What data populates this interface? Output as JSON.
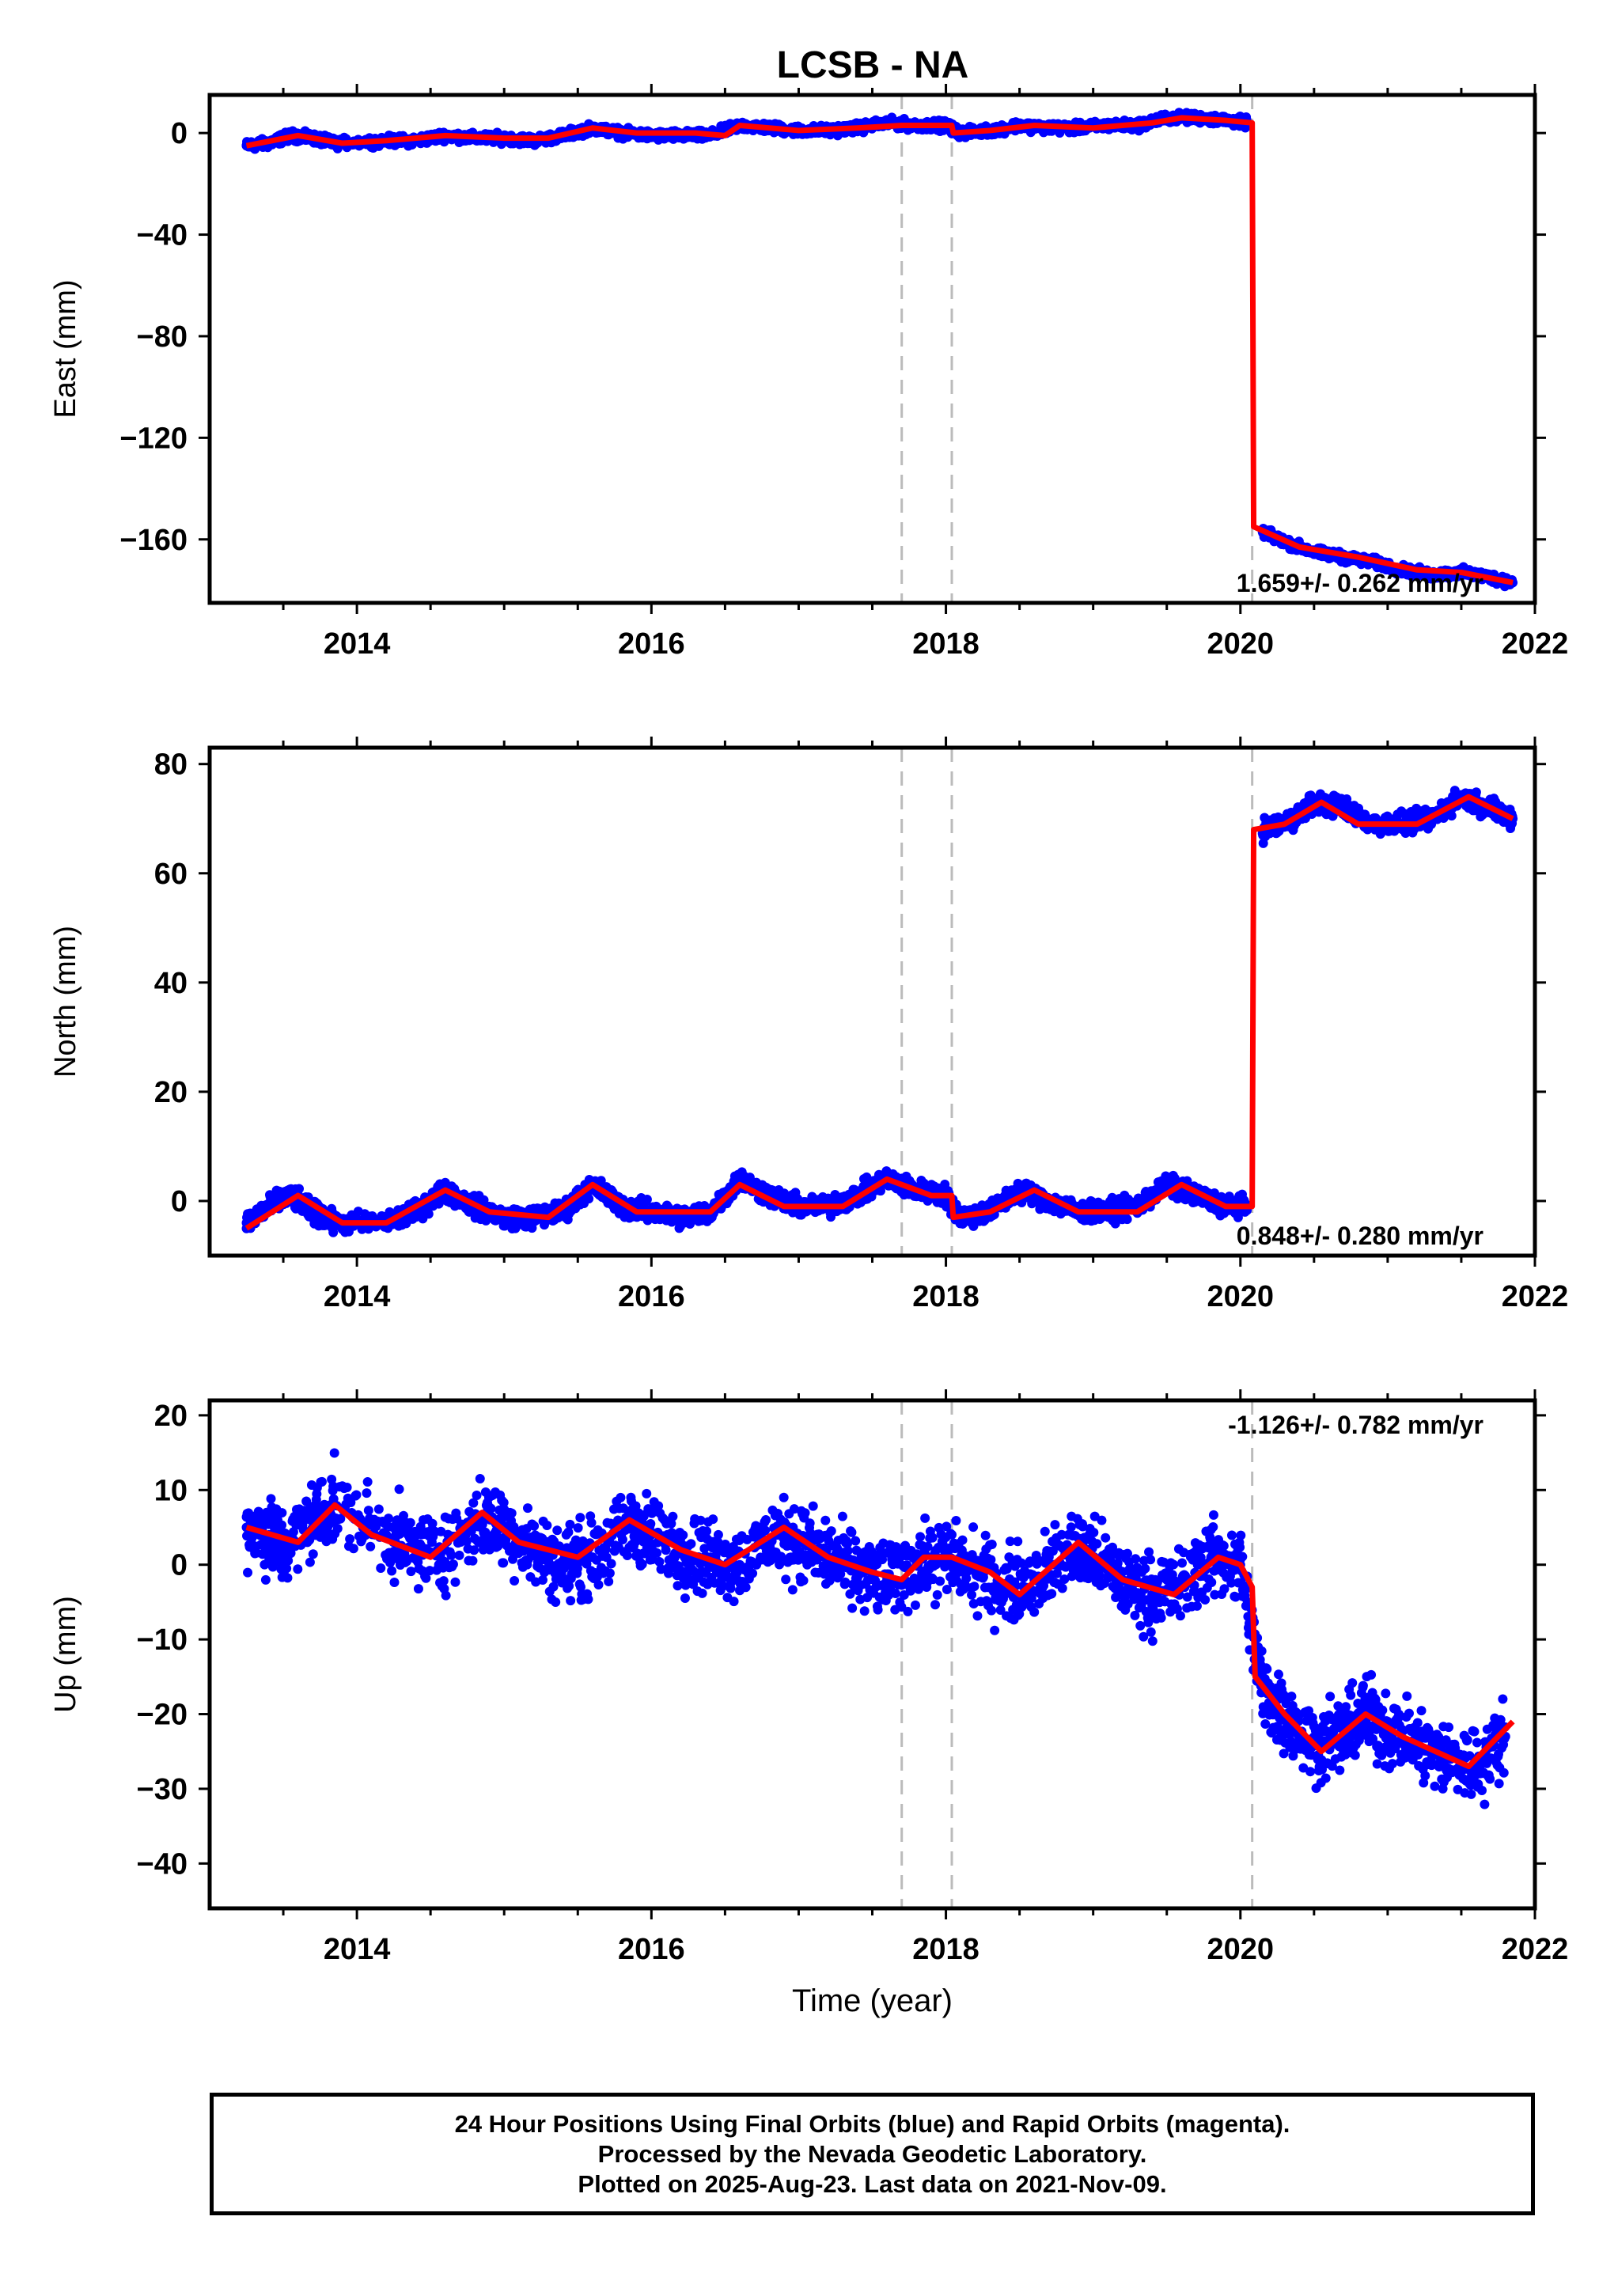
{
  "title": "LCSB - NA",
  "chart_data": [
    {
      "type": "scatter",
      "ylabel": "East (mm)",
      "xlim": [
        2013.0,
        2022.0
      ],
      "ylim": [
        -185,
        15
      ],
      "xticks": [
        2014,
        2016,
        2018,
        2020,
        2022
      ],
      "yticks": [
        0,
        -40,
        -80,
        -120,
        -160
      ],
      "rate_label": "1.659+/- 0.262 mm/yr",
      "rate_position": "bottom-right",
      "event_lines": [
        2017.7,
        2018.04,
        2020.08
      ],
      "series": [
        {
          "color": "#0000ff",
          "markers": "points",
          "values": [
            [
              2013.25,
              -5
            ],
            [
              2013.4,
              -4
            ],
            [
              2013.55,
              -1
            ],
            [
              2013.7,
              -2
            ],
            [
              2013.85,
              -4
            ],
            [
              2014.2,
              -3
            ],
            [
              2014.4,
              -3
            ],
            [
              2014.6,
              -1
            ],
            [
              2014.8,
              -2
            ],
            [
              2015.0,
              -2
            ],
            [
              2015.2,
              -3
            ],
            [
              2015.4,
              -1
            ],
            [
              2015.6,
              2
            ],
            [
              2015.8,
              0
            ],
            [
              2016.0,
              -1
            ],
            [
              2016.2,
              -1
            ],
            [
              2016.4,
              -1
            ],
            [
              2016.6,
              3
            ],
            [
              2016.8,
              2
            ],
            [
              2017.0,
              1
            ],
            [
              2017.2,
              1
            ],
            [
              2017.4,
              2
            ],
            [
              2017.6,
              4
            ],
            [
              2017.8,
              3
            ],
            [
              2018.0,
              3
            ],
            [
              2018.1,
              0
            ],
            [
              2018.3,
              1
            ],
            [
              2018.5,
              3
            ],
            [
              2018.7,
              2
            ],
            [
              2018.9,
              2
            ],
            [
              2019.1,
              3
            ],
            [
              2019.3,
              3
            ],
            [
              2019.5,
              6
            ],
            [
              2019.7,
              6
            ],
            [
              2019.9,
              5
            ],
            [
              2020.05,
              4
            ],
            [
              2020.15,
              -157
            ],
            [
              2020.3,
              -161
            ],
            [
              2020.5,
              -165
            ],
            [
              2020.7,
              -167
            ],
            [
              2020.9,
              -169
            ],
            [
              2021.1,
              -172
            ],
            [
              2021.3,
              -174
            ],
            [
              2021.5,
              -173
            ],
            [
              2021.7,
              -175
            ],
            [
              2021.85,
              -177
            ]
          ]
        },
        {
          "color": "#ff0000",
          "markers": "line",
          "values": [
            [
              2013.25,
              -5
            ],
            [
              2013.6,
              -1
            ],
            [
              2013.9,
              -4
            ],
            [
              2014.2,
              -3
            ],
            [
              2014.6,
              -1
            ],
            [
              2015.0,
              -2
            ],
            [
              2015.3,
              -2
            ],
            [
              2015.6,
              2
            ],
            [
              2015.9,
              0
            ],
            [
              2016.3,
              0
            ],
            [
              2016.5,
              -1
            ],
            [
              2016.6,
              3
            ],
            [
              2017.0,
              1
            ],
            [
              2017.4,
              2
            ],
            [
              2017.7,
              3
            ],
            [
              2018.04,
              3
            ],
            [
              2018.05,
              0
            ],
            [
              2018.3,
              1
            ],
            [
              2018.6,
              3
            ],
            [
              2019.0,
              2
            ],
            [
              2019.4,
              4
            ],
            [
              2019.6,
              6
            ],
            [
              2019.9,
              5
            ],
            [
              2020.08,
              4
            ],
            [
              2020.09,
              -155
            ],
            [
              2020.4,
              -163
            ],
            [
              2020.8,
              -167
            ],
            [
              2021.2,
              -172
            ],
            [
              2021.5,
              -173
            ],
            [
              2021.85,
              -177
            ]
          ]
        }
      ]
    },
    {
      "type": "scatter",
      "ylabel": "North (mm)",
      "xlim": [
        2013.0,
        2022.0
      ],
      "ylim": [
        -10,
        83
      ],
      "xticks": [
        2014,
        2016,
        2018,
        2020,
        2022
      ],
      "yticks": [
        0,
        20,
        40,
        60,
        80
      ],
      "rate_label": "0.848+/- 0.280 mm/yr",
      "rate_position": "bottom-right",
      "event_lines": [
        2017.7,
        2018.04,
        2020.08
      ],
      "series": [
        {
          "color": "#0000ff",
          "markers": "points",
          "values": [
            [
              2013.25,
              -4
            ],
            [
              2013.4,
              -1
            ],
            [
              2013.55,
              1
            ],
            [
              2013.7,
              -2
            ],
            [
              2013.85,
              -4
            ],
            [
              2014.2,
              -4
            ],
            [
              2014.4,
              -2
            ],
            [
              2014.6,
              2
            ],
            [
              2014.8,
              -1
            ],
            [
              2015.0,
              -3
            ],
            [
              2015.2,
              -3
            ],
            [
              2015.4,
              -2
            ],
            [
              2015.6,
              3
            ],
            [
              2015.8,
              -1
            ],
            [
              2016.0,
              -2
            ],
            [
              2016.2,
              -3
            ],
            [
              2016.4,
              -2
            ],
            [
              2016.6,
              4
            ],
            [
              2016.8,
              1
            ],
            [
              2017.0,
              -1
            ],
            [
              2017.2,
              -1
            ],
            [
              2017.4,
              1
            ],
            [
              2017.6,
              4
            ],
            [
              2017.8,
              2
            ],
            [
              2018.0,
              1
            ],
            [
              2018.1,
              -3
            ],
            [
              2018.3,
              -2
            ],
            [
              2018.5,
              2
            ],
            [
              2018.7,
              0
            ],
            [
              2018.9,
              -2
            ],
            [
              2019.1,
              -2
            ],
            [
              2019.3,
              -1
            ],
            [
              2019.5,
              3
            ],
            [
              2019.7,
              1
            ],
            [
              2019.9,
              -1
            ],
            [
              2020.05,
              -1
            ],
            [
              2020.15,
              68
            ],
            [
              2020.3,
              69
            ],
            [
              2020.5,
              73
            ],
            [
              2020.7,
              72
            ],
            [
              2020.9,
              69
            ],
            [
              2021.1,
              69
            ],
            [
              2021.3,
              70
            ],
            [
              2021.5,
              74
            ],
            [
              2021.7,
              72
            ],
            [
              2021.85,
              70
            ]
          ]
        },
        {
          "color": "#ff0000",
          "markers": "line",
          "values": [
            [
              2013.25,
              -5
            ],
            [
              2013.6,
              1
            ],
            [
              2013.9,
              -4
            ],
            [
              2014.2,
              -4
            ],
            [
              2014.6,
              2
            ],
            [
              2014.9,
              -2
            ],
            [
              2015.3,
              -3
            ],
            [
              2015.6,
              3
            ],
            [
              2015.9,
              -2
            ],
            [
              2016.4,
              -2
            ],
            [
              2016.6,
              3
            ],
            [
              2016.9,
              -1
            ],
            [
              2017.3,
              -1
            ],
            [
              2017.6,
              4
            ],
            [
              2017.9,
              1
            ],
            [
              2018.04,
              1
            ],
            [
              2018.05,
              -3
            ],
            [
              2018.3,
              -2
            ],
            [
              2018.6,
              2
            ],
            [
              2018.9,
              -2
            ],
            [
              2019.3,
              -2
            ],
            [
              2019.6,
              3
            ],
            [
              2019.9,
              -1
            ],
            [
              2020.08,
              -1
            ],
            [
              2020.09,
              68
            ],
            [
              2020.3,
              69
            ],
            [
              2020.55,
              73
            ],
            [
              2020.8,
              69
            ],
            [
              2021.2,
              69
            ],
            [
              2021.55,
              74
            ],
            [
              2021.85,
              70
            ]
          ]
        }
      ]
    },
    {
      "type": "scatter",
      "ylabel": "Up (mm)",
      "xlabel": "Time (year)",
      "xlim": [
        2013.0,
        2022.0
      ],
      "ylim": [
        -46,
        22
      ],
      "xticks": [
        2014,
        2016,
        2018,
        2020,
        2022
      ],
      "yticks": [
        20,
        10,
        0,
        -10,
        -20,
        -30,
        -40
      ],
      "rate_label": "-1.126+/- 0.782 mm/yr",
      "rate_position": "top-right",
      "event_lines": [
        2017.7,
        2018.04,
        2020.08
      ],
      "series": [
        {
          "color": "#0000ff",
          "markers": "points",
          "values": [
            [
              2013.25,
              5
            ],
            [
              2013.4,
              4
            ],
            [
              2013.5,
              2
            ],
            [
              2013.7,
              6
            ],
            [
              2013.85,
              8
            ],
            [
              2014.2,
              4
            ],
            [
              2014.4,
              2
            ],
            [
              2014.6,
              2
            ],
            [
              2014.85,
              6
            ],
            [
              2015.0,
              5
            ],
            [
              2015.2,
              2
            ],
            [
              2015.4,
              0
            ],
            [
              2015.6,
              1
            ],
            [
              2015.85,
              5
            ],
            [
              2016.0,
              4
            ],
            [
              2016.2,
              2
            ],
            [
              2016.4,
              1
            ],
            [
              2016.6,
              0
            ],
            [
              2016.85,
              4
            ],
            [
              2017.0,
              3
            ],
            [
              2017.2,
              1
            ],
            [
              2017.4,
              -1
            ],
            [
              2017.6,
              -2
            ],
            [
              2017.8,
              0
            ],
            [
              2018.0,
              1
            ],
            [
              2018.2,
              -1
            ],
            [
              2018.4,
              -3
            ],
            [
              2018.6,
              -2
            ],
            [
              2018.85,
              2
            ],
            [
              2019.0,
              1
            ],
            [
              2019.2,
              -2
            ],
            [
              2019.4,
              -4
            ],
            [
              2019.6,
              -3
            ],
            [
              2019.8,
              1
            ],
            [
              2020.0,
              0
            ],
            [
              2020.15,
              -17
            ],
            [
              2020.3,
              -20
            ],
            [
              2020.5,
              -24
            ],
            [
              2020.7,
              -23
            ],
            [
              2020.85,
              -20
            ],
            [
              2021.0,
              -22
            ],
            [
              2021.2,
              -24
            ],
            [
              2021.4,
              -26
            ],
            [
              2021.6,
              -27
            ],
            [
              2021.8,
              -23
            ]
          ]
        },
        {
          "color": "#ff0000",
          "markers": "line",
          "values": [
            [
              2013.25,
              5
            ],
            [
              2013.6,
              3
            ],
            [
              2013.85,
              8
            ],
            [
              2014.1,
              4
            ],
            [
              2014.5,
              1
            ],
            [
              2014.85,
              7
            ],
            [
              2015.1,
              3
            ],
            [
              2015.5,
              1
            ],
            [
              2015.85,
              6
            ],
            [
              2016.2,
              2
            ],
            [
              2016.5,
              0
            ],
            [
              2016.9,
              5
            ],
            [
              2017.2,
              1
            ],
            [
              2017.5,
              -1
            ],
            [
              2017.7,
              -2
            ],
            [
              2017.85,
              1
            ],
            [
              2018.04,
              1
            ],
            [
              2018.3,
              -1
            ],
            [
              2018.5,
              -4
            ],
            [
              2018.9,
              3
            ],
            [
              2019.2,
              -2
            ],
            [
              2019.55,
              -4
            ],
            [
              2019.85,
              1
            ],
            [
              2020.0,
              0
            ],
            [
              2020.08,
              -3
            ],
            [
              2020.1,
              -15
            ],
            [
              2020.3,
              -20
            ],
            [
              2020.55,
              -25
            ],
            [
              2020.85,
              -20
            ],
            [
              2021.1,
              -23
            ],
            [
              2021.55,
              -27
            ],
            [
              2021.85,
              -21
            ]
          ]
        }
      ]
    }
  ],
  "footer": {
    "line1": "24 Hour Positions Using Final Orbits (blue) and Rapid Orbits (magenta).",
    "line2": "Processed by the Nevada Geodetic Laboratory.",
    "line3": "Plotted on 2025-Aug-23. Last data on 2021-Nov-09."
  }
}
